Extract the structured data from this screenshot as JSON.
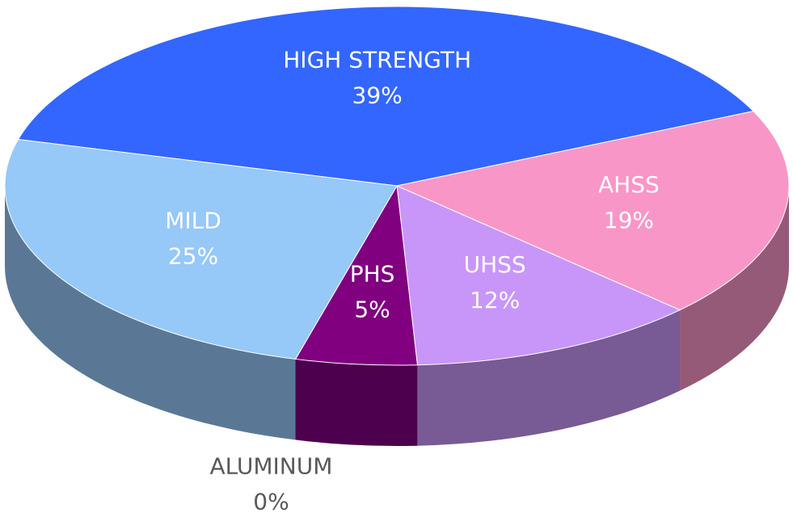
{
  "chart_data": {
    "type": "pie",
    "categories": [
      "HIGH STRENGTH",
      "AHSS",
      "UHSS",
      "PHS",
      "ALUMINUM",
      "MILD"
    ],
    "values": [
      39,
      19,
      12,
      5,
      0,
      25
    ],
    "value_labels": [
      "39%",
      "19%",
      "12%",
      "5%",
      "0%",
      "25%"
    ],
    "colors": [
      "#3366ff",
      "#f896c8",
      "#c896f8",
      "#800080",
      "#c8f0c0",
      "#96c8f8"
    ]
  }
}
